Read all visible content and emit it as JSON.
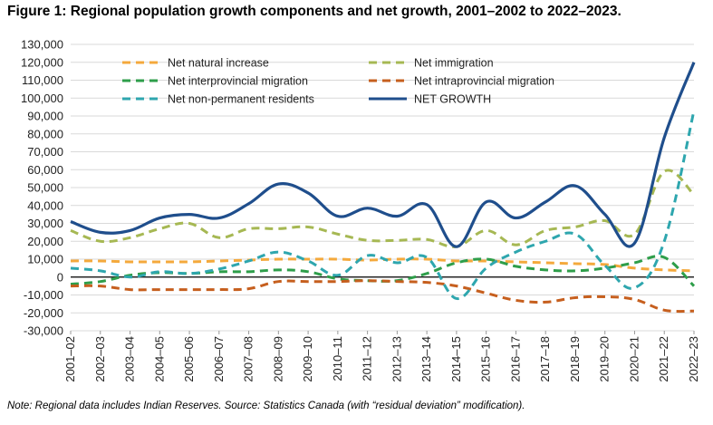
{
  "title": "Figure 1: Regional population growth components and net growth, 2001–2002 to 2022–2023.",
  "note": "Note: Regional data includes Indian Reserves. Source: Statistics Canada (with “residual deviation” modification).",
  "chart_data": {
    "type": "line",
    "title": "Figure 1: Regional population growth components and net growth, 2001–2002 to 2022–2023.",
    "xlabel": "",
    "ylabel": "",
    "ylim": [
      -30000,
      130000
    ],
    "yticks": [
      -30000,
      -20000,
      -10000,
      0,
      10000,
      20000,
      30000,
      40000,
      50000,
      60000,
      70000,
      80000,
      90000,
      100000,
      110000,
      120000,
      130000
    ],
    "ytick_labels": [
      "-30,000",
      "-20,000",
      "-10,000",
      "0",
      "10,000",
      "20,000",
      "30,000",
      "40,000",
      "50,000",
      "60,000",
      "70,000",
      "80,000",
      "90,000",
      "100,000",
      "110,000",
      "120,000",
      "130,000"
    ],
    "grid": true,
    "legend_position": "top-center",
    "categories": [
      "2001–02",
      "2002–03",
      "2003–04",
      "2004–05",
      "2005–06",
      "2006–07",
      "2007–08",
      "2008–09",
      "2009–10",
      "2010–11",
      "2011–12",
      "2012–13",
      "2013–14",
      "2014–15",
      "2015–16",
      "2016–17",
      "2017–18",
      "2018–19",
      "2019–20",
      "2020–21",
      "2021–22",
      "2022–23"
    ],
    "series": [
      {
        "name": "Net natural increase",
        "color": "#F4A93C",
        "style": "dashed",
        "values": [
          9000,
          9000,
          8500,
          8500,
          8500,
          9000,
          9500,
          10000,
          10000,
          10000,
          9500,
          10000,
          10000,
          9000,
          9000,
          8500,
          8000,
          7500,
          7000,
          5000,
          4000,
          3500
        ]
      },
      {
        "name": "Net immigration",
        "color": "#A6B853",
        "style": "dashed",
        "values": [
          26000,
          20000,
          22000,
          27000,
          30000,
          22000,
          27000,
          27000,
          28000,
          24000,
          20500,
          20500,
          21000,
          17000,
          26000,
          18000,
          26000,
          28000,
          31500,
          24000,
          59000,
          46000
        ]
      },
      {
        "name": "Net interprovincial migration",
        "color": "#2E9E4A",
        "style": "dashed",
        "values": [
          -4000,
          -2500,
          1000,
          2500,
          2000,
          3000,
          3000,
          4000,
          3000,
          -1000,
          -2000,
          -2000,
          2000,
          8000,
          10000,
          6000,
          4000,
          3500,
          5000,
          8000,
          11000,
          -5000
        ]
      },
      {
        "name": "Net intraprovincial migration",
        "color": "#C65F1E",
        "style": "dashed",
        "values": [
          -5000,
          -5000,
          -7000,
          -7000,
          -7000,
          -7000,
          -6500,
          -2500,
          -2500,
          -2500,
          -2000,
          -2500,
          -3000,
          -5000,
          -9000,
          -13000,
          -14000,
          -11500,
          -11000,
          -12500,
          -18500,
          -19000
        ]
      },
      {
        "name": "Net non-permanent residents",
        "color": "#2EA6AE",
        "style": "dashed",
        "values": [
          5000,
          3500,
          0,
          3000,
          2000,
          4500,
          9000,
          14000,
          9000,
          1000,
          12000,
          8000,
          11000,
          -12000,
          5000,
          14000,
          20000,
          24000,
          6500,
          -6000,
          20000,
          93000
        ]
      },
      {
        "name": "NET GROWTH",
        "color": "#1F4E8C",
        "style": "solid",
        "values": [
          31000,
          25000,
          26000,
          33000,
          35000,
          33000,
          41000,
          52000,
          47000,
          34000,
          38500,
          34000,
          40500,
          17000,
          42000,
          33000,
          42000,
          51000,
          35000,
          19000,
          78000,
          120000
        ]
      }
    ]
  }
}
